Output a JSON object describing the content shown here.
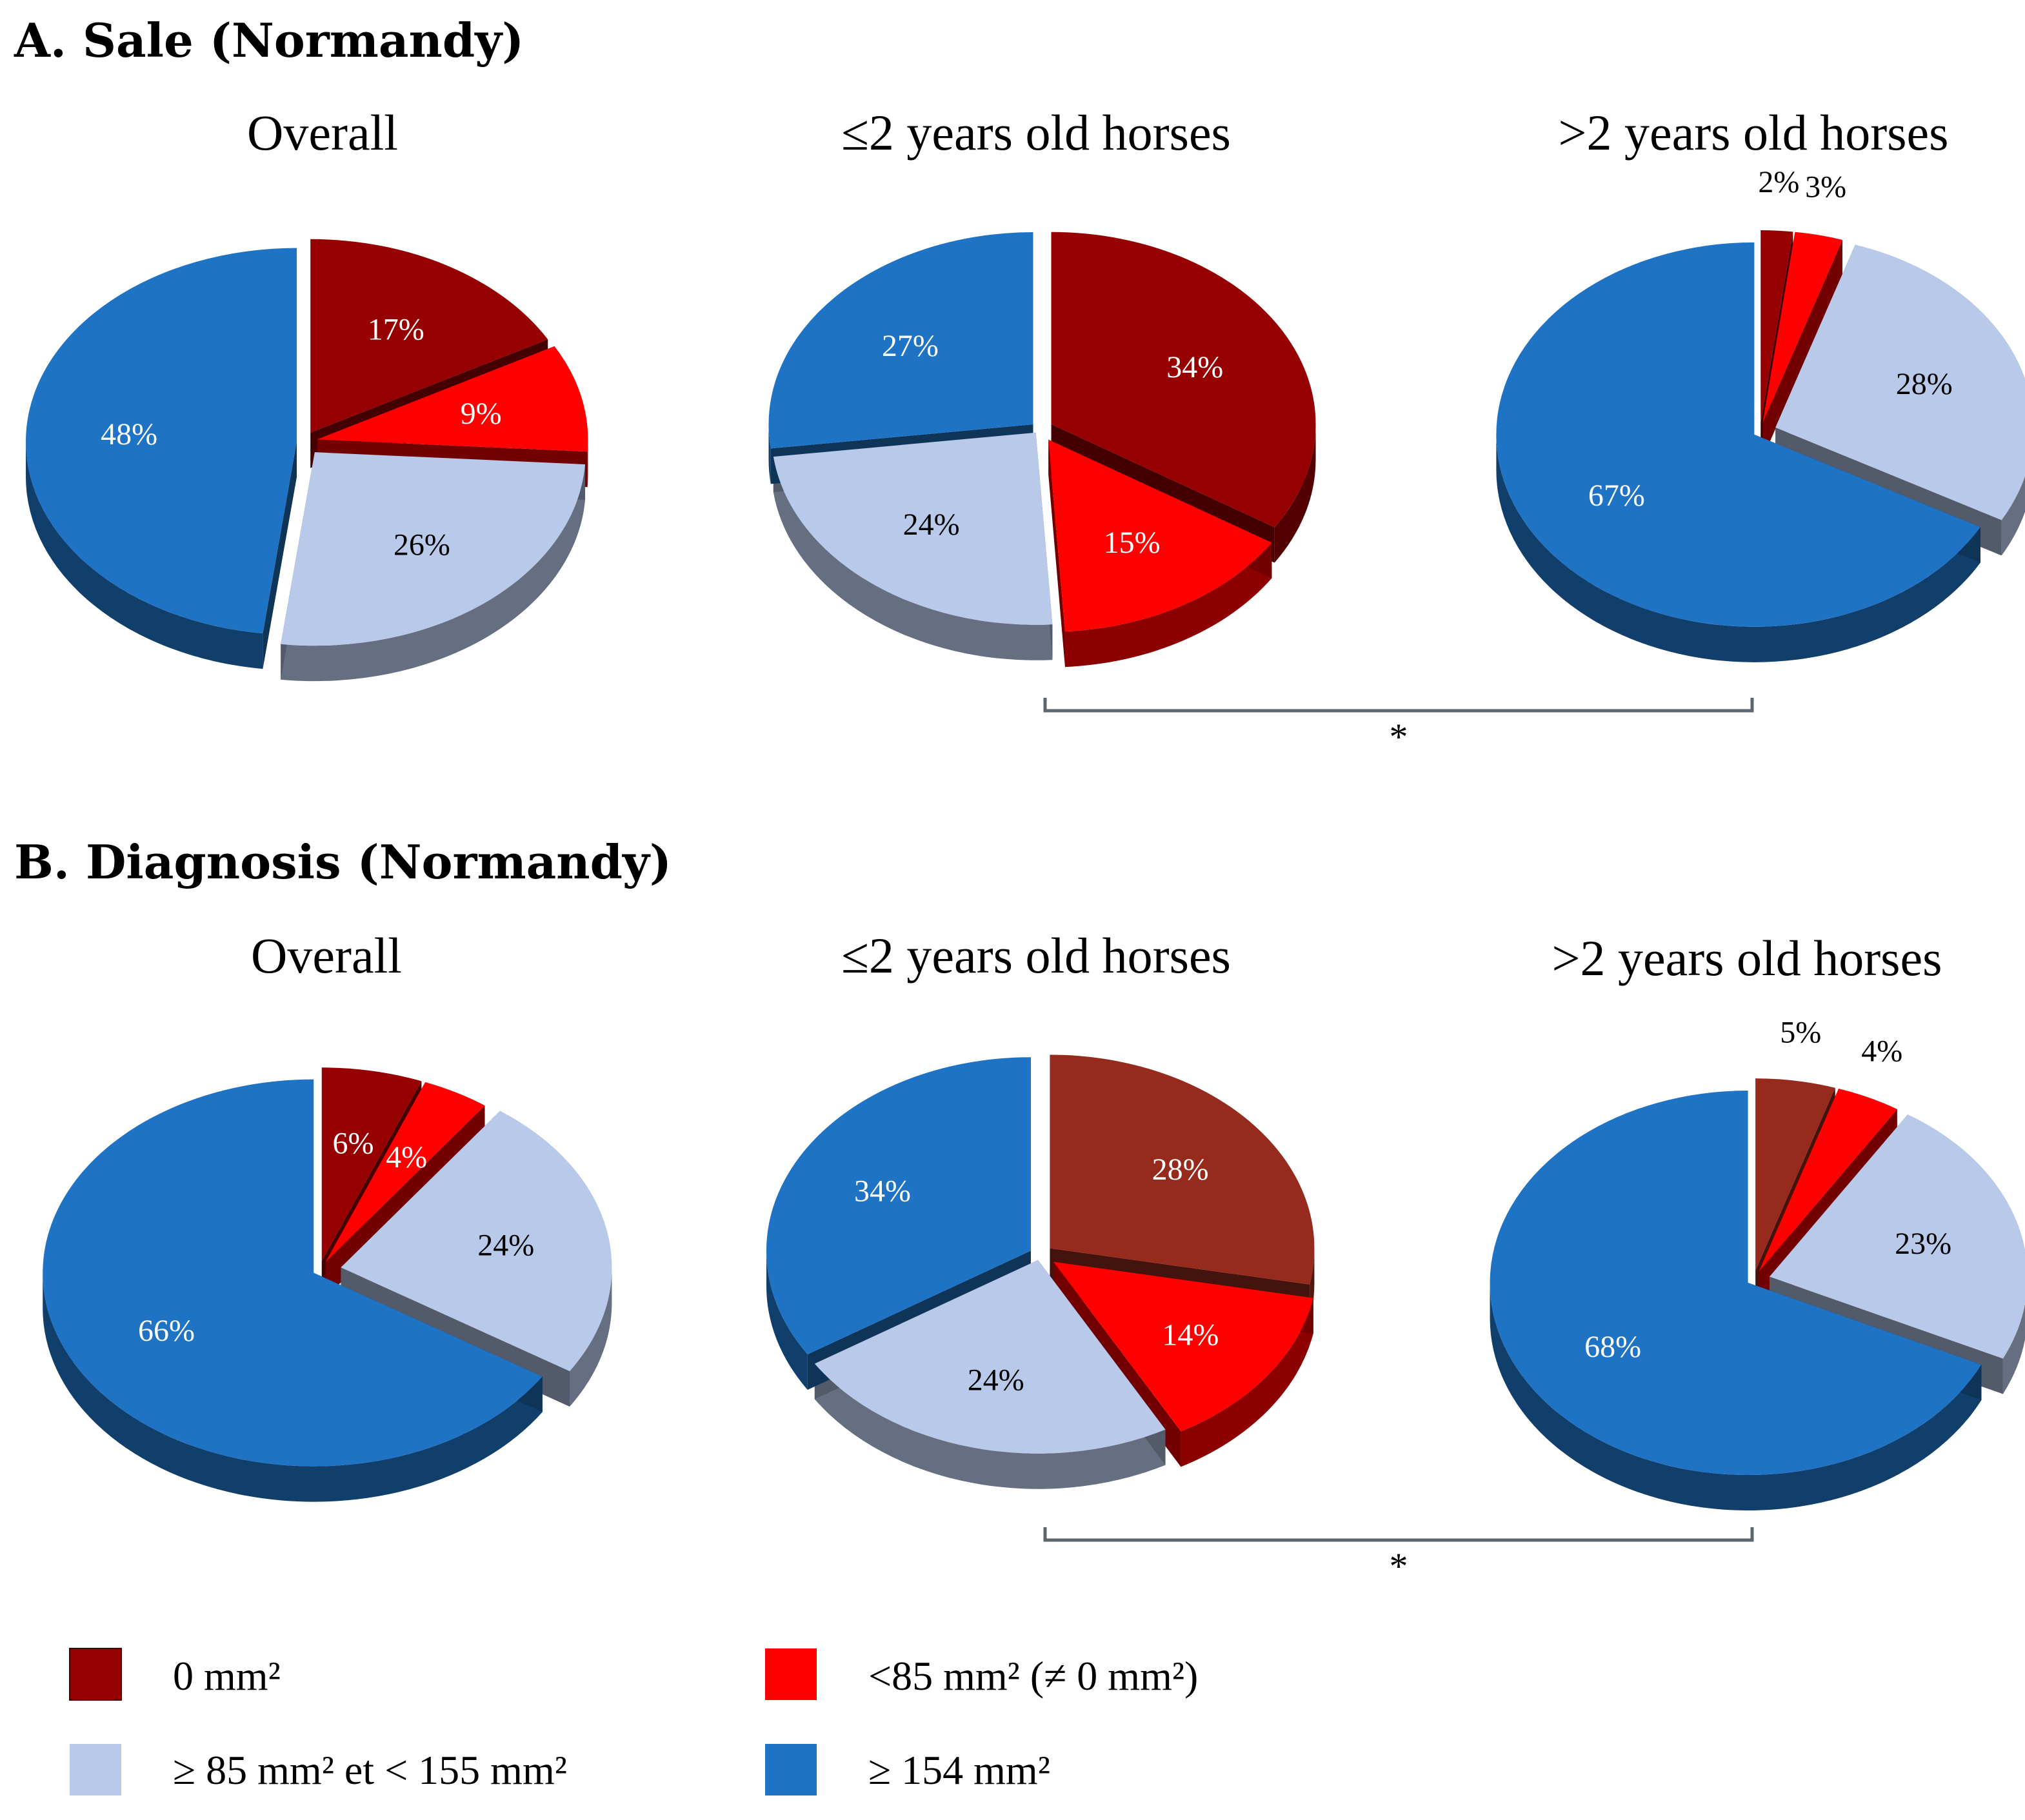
{
  "sections": [
    {
      "title": "A. Sale (Normandy)"
    },
    {
      "title": "B. Diagnosis (Normandy)"
    }
  ],
  "chart_data": [
    {
      "type": "pie",
      "section": "A. Sale (Normandy)",
      "title": "Overall",
      "slices": [
        {
          "category": "0 mm²",
          "value": 17,
          "label": "17%"
        },
        {
          "category": "<85 mm² (≠ 0 mm²)",
          "value": 9,
          "label": "9%"
        },
        {
          "category": "≥ 85 mm² et < 155 mm²",
          "value": 26,
          "label": "26%"
        },
        {
          "category": "≥ 154 mm²",
          "value": 48,
          "label": "48%"
        }
      ]
    },
    {
      "type": "pie",
      "section": "A. Sale (Normandy)",
      "title": "≤2 years old horses",
      "slices": [
        {
          "category": "0 mm²",
          "value": 34,
          "label": "34%"
        },
        {
          "category": "<85 mm² (≠ 0 mm²)",
          "value": 15,
          "label": "15%"
        },
        {
          "category": "≥ 85 mm² et < 155 mm²",
          "value": 24,
          "label": "24%"
        },
        {
          "category": "≥ 154 mm²",
          "value": 27,
          "label": "27%"
        }
      ]
    },
    {
      "type": "pie",
      "section": "A. Sale (Normandy)",
      "title": ">2 years old horses",
      "slices": [
        {
          "category": "0 mm²",
          "value": 2,
          "label": "2%"
        },
        {
          "category": "<85 mm² (≠ 0 mm²)",
          "value": 3,
          "label": "3%"
        },
        {
          "category": "≥ 85 mm² et < 155 mm²",
          "value": 28,
          "label": "28%"
        },
        {
          "category": "≥ 154 mm²",
          "value": 67,
          "label": "67%"
        }
      ]
    },
    {
      "type": "pie",
      "section": "B. Diagnosis (Normandy)",
      "title": "Overall",
      "slices": [
        {
          "category": "0 mm²",
          "value": 6,
          "label": "6%"
        },
        {
          "category": "<85 mm² (≠ 0 mm²)",
          "value": 4,
          "label": "4%"
        },
        {
          "category": "≥ 85 mm² et < 155 mm²",
          "value": 24,
          "label": "24%"
        },
        {
          "category": "≥ 154 mm²",
          "value": 66,
          "label": "66%"
        }
      ]
    },
    {
      "type": "pie",
      "section": "B. Diagnosis (Normandy)",
      "title": "≤2 years old horses",
      "slices": [
        {
          "category": "0 mm²",
          "value": 28,
          "label": "28%"
        },
        {
          "category": "<85 mm² (≠ 0 mm²)",
          "value": 14,
          "label": "14%"
        },
        {
          "category": "≥ 85 mm² et < 155 mm²",
          "value": 24,
          "label": "24%"
        },
        {
          "category": "≥ 154 mm²",
          "value": 34,
          "label": "34%"
        }
      ]
    },
    {
      "type": "pie",
      "section": "B. Diagnosis (Normandy)",
      "title": ">2 years old horses",
      "slices": [
        {
          "category": "0 mm²",
          "value": 5,
          "label": "5%"
        },
        {
          "category": "<85 mm² (≠ 0 mm²)",
          "value": 4,
          "label": "4%"
        },
        {
          "category": "≥ 85 mm² et < 155 mm²",
          "value": 23,
          "label": "23%"
        },
        {
          "category": "≥ 154 mm²",
          "value": 68,
          "label": "68%"
        }
      ]
    }
  ],
  "significance": [
    {
      "section": "A. Sale (Normandy)",
      "between": [
        "≤2 years old horses",
        ">2 years old horses"
      ],
      "marker": "*"
    },
    {
      "section": "B. Diagnosis (Normandy)",
      "between": [
        "≤2 years old horses",
        ">2 years old horses"
      ],
      "marker": "*"
    }
  ],
  "legend": [
    {
      "label": "0 mm²",
      "color": "#960000"
    },
    {
      "label": "<85 mm² (≠ 0 mm²)",
      "color": "#ff0000"
    },
    {
      "label": "≥ 85 mm² et < 155 mm²",
      "color": "#b8c9ea"
    },
    {
      "label": "≥ 154 mm²",
      "color": "#1e73c4"
    }
  ],
  "colors": {
    "dark_red_alt": "#962a1c",
    "label_light": "#ffffff",
    "label_dark": "#000000",
    "bracket": "#5a6670"
  }
}
